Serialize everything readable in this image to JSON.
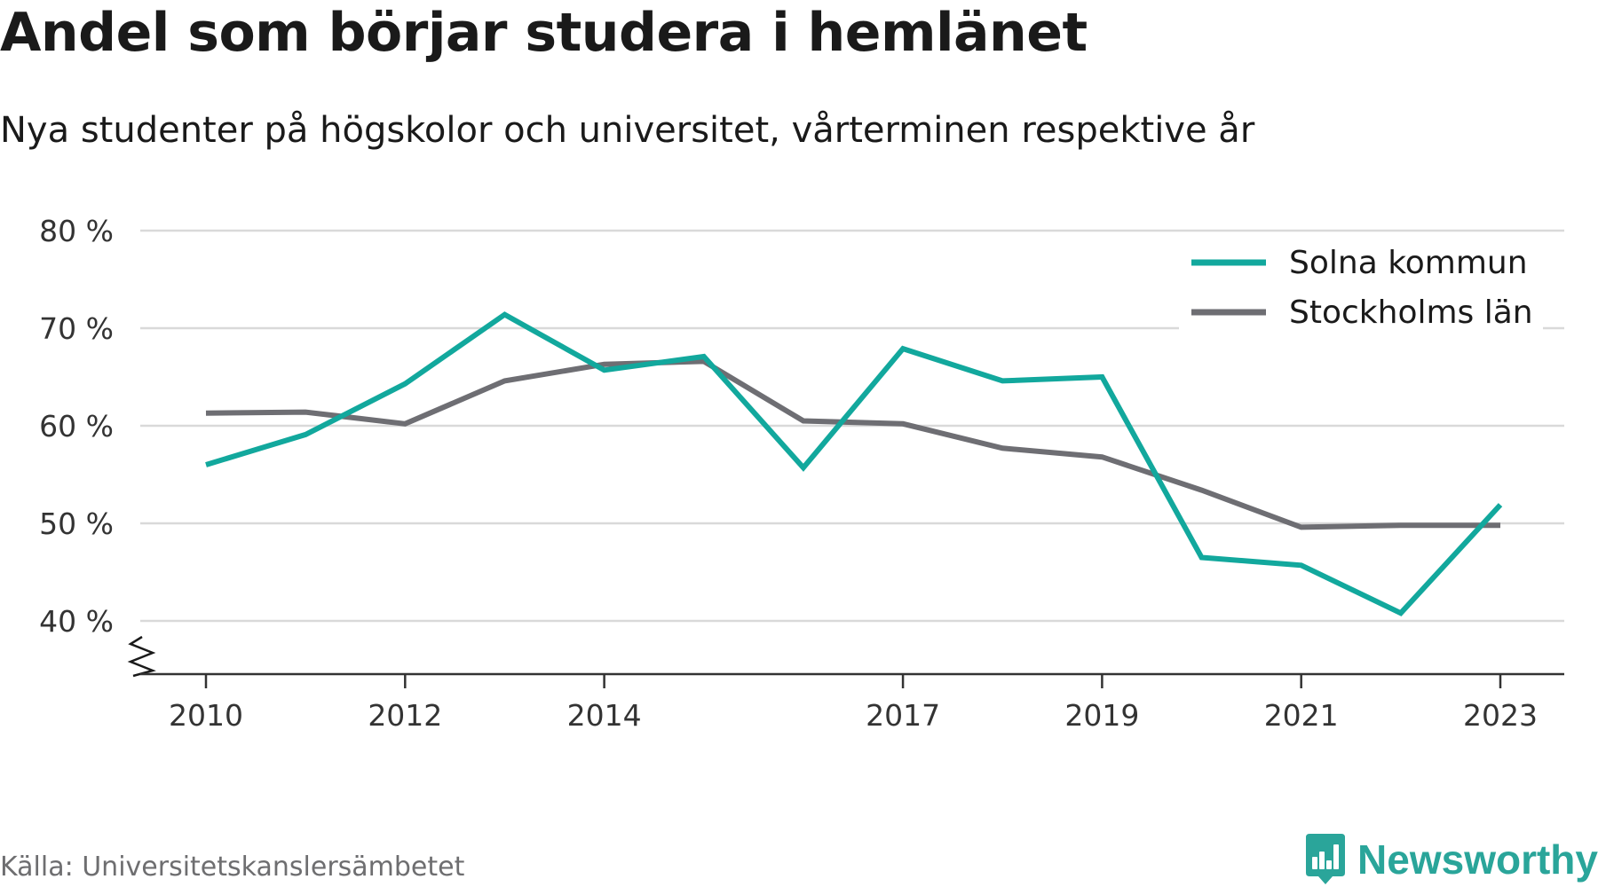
{
  "header": {
    "title": "Andel som börjar studera i hemlänet",
    "subtitle": "Nya studenter på högskolor och universitet, vårterminen respektive år"
  },
  "footer": {
    "source": "Källa: Universitetskanslersämbetet",
    "brand": "Newsworthy",
    "brand_icon": "bar-chart-badge-icon"
  },
  "colors": {
    "solna": "#12a89d",
    "stockholm": "#6e6e73",
    "grid": "#d9d9d9",
    "axis": "#333333",
    "brand": "#2aa59a"
  },
  "chart_data": {
    "type": "line",
    "x": [
      2010,
      2011,
      2012,
      2013,
      2014,
      2015,
      2016,
      2017,
      2018,
      2019,
      2020,
      2021,
      2022,
      2023
    ],
    "x_tick_labels": [
      "2010",
      "2012",
      "2014",
      "2017",
      "2019",
      "2021",
      "2023"
    ],
    "x_ticks": [
      2010,
      2012,
      2014,
      2017,
      2019,
      2021,
      2023
    ],
    "y_ticks": [
      40,
      50,
      60,
      70,
      80
    ],
    "y_tick_labels": [
      "40 %",
      "50 %",
      "60 %",
      "70 %",
      "80 %"
    ],
    "ylim": [
      35,
      80
    ],
    "axis_break": true,
    "grid": true,
    "legend_position": "top-right",
    "series": [
      {
        "name": "Solna kommun",
        "color": "#12a89d",
        "values": [
          56.0,
          59.1,
          64.3,
          71.4,
          65.7,
          67.1,
          55.7,
          67.9,
          64.6,
          65.0,
          46.5,
          45.7,
          40.8,
          51.9
        ]
      },
      {
        "name": "Stockholms län",
        "color": "#6e6e73",
        "values": [
          61.3,
          61.4,
          60.2,
          64.6,
          66.3,
          66.6,
          60.5,
          60.2,
          57.7,
          56.8,
          53.4,
          49.6,
          49.8,
          49.8
        ]
      }
    ]
  }
}
